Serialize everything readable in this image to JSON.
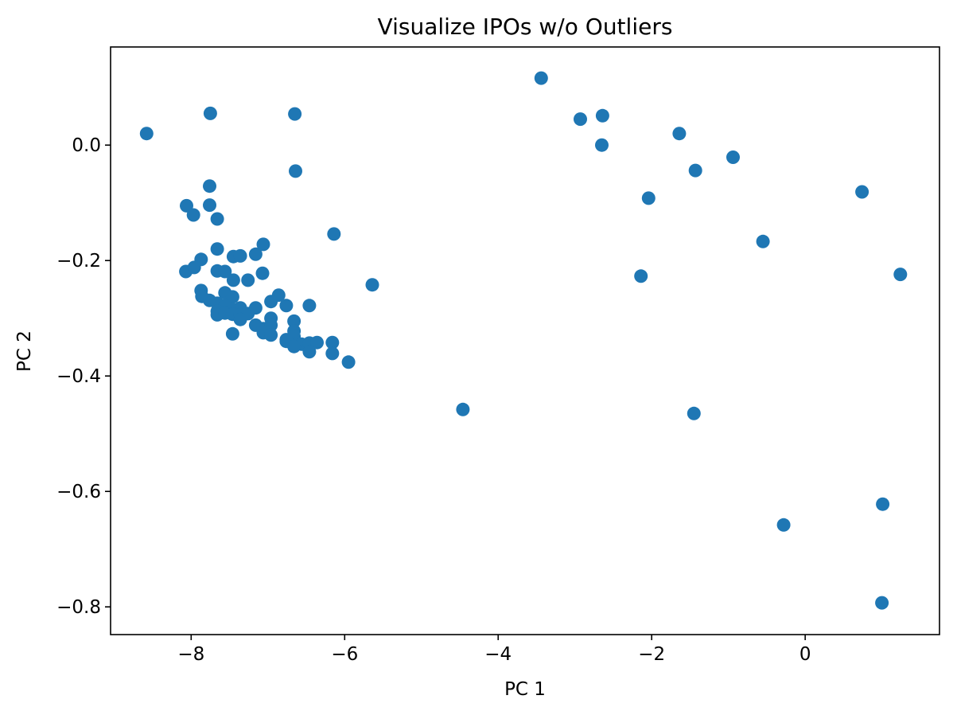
{
  "chart_data": {
    "type": "scatter",
    "title": "Visualize IPOs w/o Outliers",
    "xlabel": "PC 1",
    "ylabel": "PC 2",
    "xlim": [
      -9.05,
      1.75
    ],
    "ylim": [
      -0.848,
      0.17
    ],
    "xticks": [
      -8,
      -6,
      -4,
      -2,
      0
    ],
    "xtick_labels": [
      "−8",
      "−6",
      "−4",
      "−2",
      "0"
    ],
    "yticks": [
      0.0,
      -0.2,
      -0.4,
      -0.6,
      -0.8
    ],
    "ytick_labels": [
      "0.0",
      "−0.2",
      "−0.4",
      "−0.6",
      "−0.8"
    ],
    "grid": false,
    "marker_color": "#1f77b4",
    "series": [
      {
        "points": [
          [
            -8.58,
            0.02
          ],
          [
            -7.75,
            0.055
          ],
          [
            -6.65,
            0.054
          ],
          [
            -6.64,
            -0.045
          ],
          [
            -7.76,
            -0.071
          ],
          [
            -8.06,
            -0.105
          ],
          [
            -7.76,
            -0.104
          ],
          [
            -7.97,
            -0.121
          ],
          [
            -7.66,
            -0.128
          ],
          [
            -7.66,
            -0.18
          ],
          [
            -7.87,
            -0.198
          ],
          [
            -7.45,
            -0.193
          ],
          [
            -7.36,
            -0.192
          ],
          [
            -7.16,
            -0.189
          ],
          [
            -7.06,
            -0.172
          ],
          [
            -6.14,
            -0.154
          ],
          [
            -8.07,
            -0.219
          ],
          [
            -7.96,
            -0.212
          ],
          [
            -7.66,
            -0.218
          ],
          [
            -7.56,
            -0.219
          ],
          [
            -7.07,
            -0.222
          ],
          [
            -7.45,
            -0.234
          ],
          [
            -7.26,
            -0.234
          ],
          [
            -5.64,
            -0.242
          ],
          [
            -7.87,
            -0.252
          ],
          [
            -7.86,
            -0.262
          ],
          [
            -7.56,
            -0.256
          ],
          [
            -7.46,
            -0.263
          ],
          [
            -6.86,
            -0.26
          ],
          [
            -7.76,
            -0.269
          ],
          [
            -7.66,
            -0.274
          ],
          [
            -6.96,
            -0.271
          ],
          [
            -6.76,
            -0.278
          ],
          [
            -6.46,
            -0.278
          ],
          [
            -7.56,
            -0.278
          ],
          [
            -7.36,
            -0.282
          ],
          [
            -7.16,
            -0.282
          ],
          [
            -7.47,
            -0.284
          ],
          [
            -7.66,
            -0.288
          ],
          [
            -7.66,
            -0.294
          ],
          [
            -7.56,
            -0.291
          ],
          [
            -7.46,
            -0.293
          ],
          [
            -7.36,
            -0.294
          ],
          [
            -7.26,
            -0.292
          ],
          [
            -7.36,
            -0.302
          ],
          [
            -6.96,
            -0.3
          ],
          [
            -6.66,
            -0.305
          ],
          [
            -7.16,
            -0.312
          ],
          [
            -7.06,
            -0.318
          ],
          [
            -6.96,
            -0.312
          ],
          [
            -7.06,
            -0.325
          ],
          [
            -6.96,
            -0.329
          ],
          [
            -6.66,
            -0.322
          ],
          [
            -7.46,
            -0.327
          ],
          [
            -6.66,
            -0.332
          ],
          [
            -6.76,
            -0.34
          ],
          [
            -6.66,
            -0.345
          ],
          [
            -6.56,
            -0.345
          ],
          [
            -6.46,
            -0.343
          ],
          [
            -6.36,
            -0.342
          ],
          [
            -6.16,
            -0.342
          ],
          [
            -6.76,
            -0.337
          ],
          [
            -6.66,
            -0.349
          ],
          [
            -6.46,
            -0.358
          ],
          [
            -6.16,
            -0.361
          ],
          [
            -5.95,
            -0.376
          ],
          [
            -4.46,
            -0.458
          ],
          [
            -3.44,
            0.116
          ],
          [
            -2.93,
            0.045
          ],
          [
            -2.64,
            0.051
          ],
          [
            -2.65,
            0.0
          ],
          [
            -1.64,
            0.02
          ],
          [
            -1.43,
            -0.044
          ],
          [
            -0.94,
            -0.021
          ],
          [
            -2.04,
            -0.092
          ],
          [
            -2.14,
            -0.227
          ],
          [
            -0.55,
            -0.167
          ],
          [
            -1.45,
            -0.465
          ],
          [
            0.74,
            -0.081
          ],
          [
            1.24,
            -0.224
          ],
          [
            -0.28,
            -0.658
          ],
          [
            1.01,
            -0.622
          ],
          [
            1.0,
            -0.793
          ]
        ]
      }
    ]
  }
}
